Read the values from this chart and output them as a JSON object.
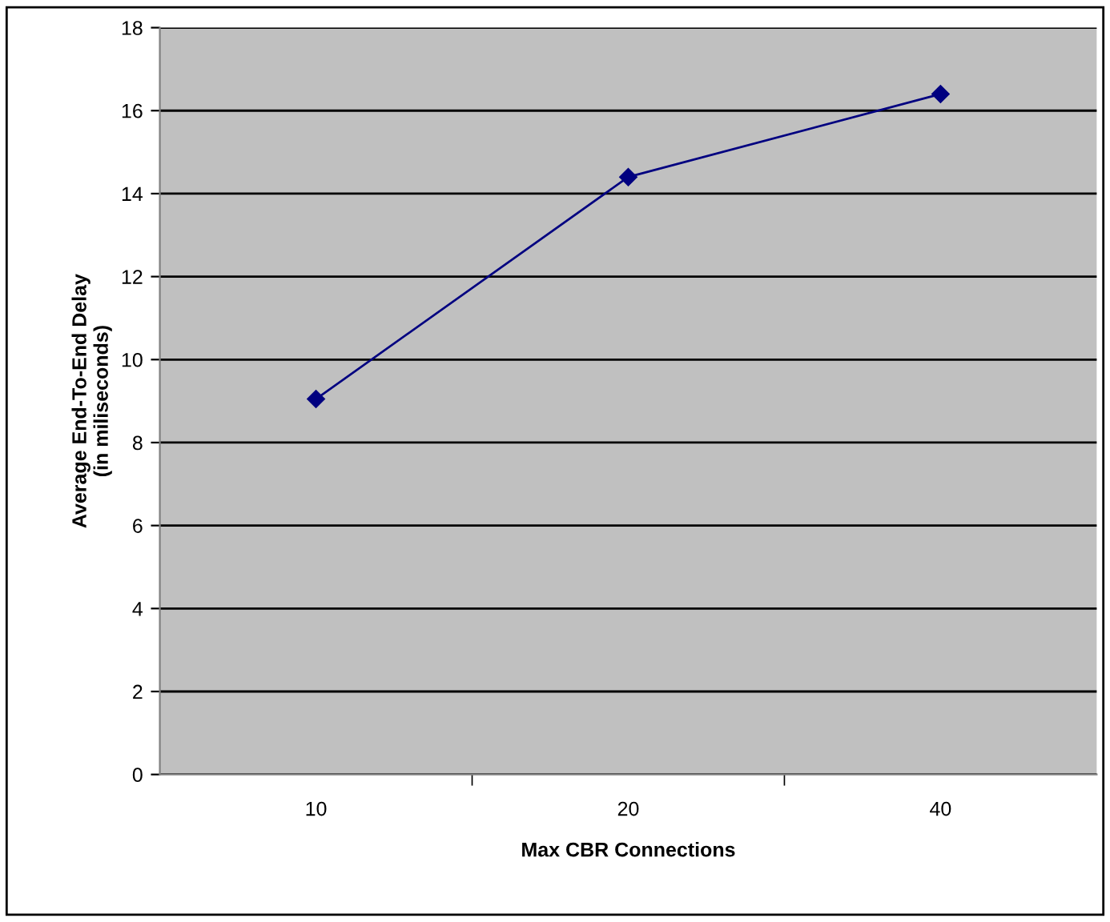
{
  "chart_data": {
    "type": "line",
    "xlabel": "Max CBR Connections",
    "ylabel": "Average End-To-End Delay\n(in miliseconds)",
    "categories": [
      "10",
      "20",
      "40"
    ],
    "series": [
      {
        "color": "#000080",
        "values": [
          9.05,
          14.4,
          16.4
        ]
      }
    ],
    "ylim": [
      0,
      18
    ],
    "yticks": [
      0,
      2,
      4,
      6,
      8,
      10,
      12,
      14,
      16,
      18
    ],
    "grid": "y",
    "marker": "diamond",
    "line_style": "solid"
  }
}
